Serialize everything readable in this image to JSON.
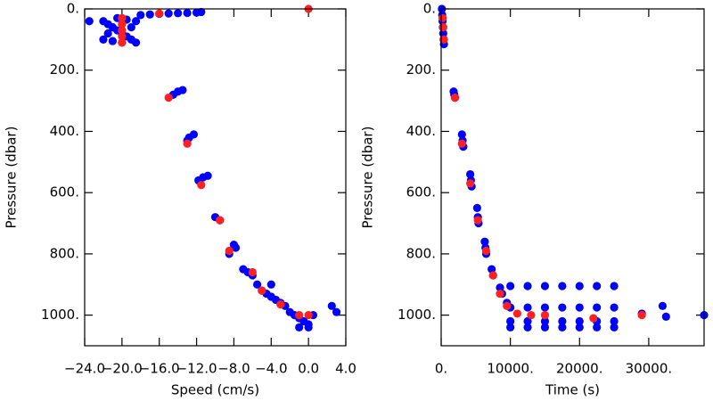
{
  "chart_data": [
    {
      "type": "scatter",
      "xlabel": "Speed (cm/s)",
      "ylabel": "Pressure (dbar)",
      "xlim": [
        -24,
        4
      ],
      "ylim": [
        1100,
        0
      ],
      "xticks": [
        {
          "value": -24,
          "label": "−24.0"
        },
        {
          "value": -20,
          "label": "−20.0"
        },
        {
          "value": -16,
          "label": "−16.0"
        },
        {
          "value": -12,
          "label": "−12.0"
        },
        {
          "value": -8,
          "label": "−8.0"
        },
        {
          "value": -4,
          "label": "−4.0"
        },
        {
          "value": 0,
          "label": "0.0"
        },
        {
          "value": 4,
          "label": "4.0"
        }
      ],
      "yticks": [
        {
          "value": 0,
          "label": "0."
        },
        {
          "value": 200,
          "label": "200."
        },
        {
          "value": 400,
          "label": "400."
        },
        {
          "value": 600,
          "label": "600."
        },
        {
          "value": 800,
          "label": "800."
        },
        {
          "value": 1000,
          "label": "1000."
        }
      ],
      "series": [
        {
          "color": "#0000ff",
          "x": [
            -22,
            -21.5,
            -21,
            -20.5,
            -20,
            -19.5,
            -19,
            -18.5,
            -22,
            -21,
            -20,
            -19,
            -18.5,
            -21.5,
            -20.5,
            -19.5,
            -23.5,
            -18,
            -17,
            -16,
            -15,
            -14,
            -13,
            -12,
            -11.5,
            -14.5,
            -14,
            -13.5,
            -13,
            -12.8,
            -12.3,
            -11.8,
            -11.3,
            -10.8,
            -10,
            -9.5,
            -8.5,
            -8,
            -7.8,
            -7,
            -6.5,
            -6,
            -5.5,
            -5,
            -4.5,
            -4,
            -3.5,
            -3,
            -2.5,
            -2,
            -1.5,
            -1,
            -0.5,
            0,
            0.5,
            -1,
            0,
            -4,
            2.5,
            3
          ],
          "values": [
            40,
            50,
            60,
            70,
            80,
            90,
            100,
            110,
            100,
            105,
            110,
            60,
            40,
            80,
            30,
            35,
            40,
            20,
            18,
            16,
            15,
            14,
            13,
            12,
            10,
            280,
            270,
            265,
            430,
            420,
            410,
            560,
            550,
            545,
            680,
            690,
            800,
            770,
            780,
            850,
            860,
            870,
            900,
            920,
            930,
            940,
            950,
            960,
            970,
            990,
            1000,
            1010,
            1020,
            1030,
            1000,
            1040,
            1040,
            900,
            970,
            990
          ]
        },
        {
          "color": "#ff2020",
          "x": [
            -20,
            -20,
            -20,
            -20,
            -20,
            -16,
            -15,
            -13,
            -11.5,
            -9.5,
            -8.5,
            -6,
            -5,
            -3,
            -1,
            0,
            0
          ],
          "values": [
            30,
            50,
            70,
            90,
            110,
            15,
            290,
            440,
            575,
            690,
            790,
            860,
            920,
            965,
            1000,
            1000,
            0
          ]
        }
      ]
    },
    {
      "type": "scatter",
      "xlabel": "Time (s)",
      "ylabel": "Pressure (dbar)",
      "xlim": [
        0,
        38000
      ],
      "ylim": [
        1100,
        0
      ],
      "xticks": [
        {
          "value": 0,
          "label": "0."
        },
        {
          "value": 10000,
          "label": "10000."
        },
        {
          "value": 20000,
          "label": "20000."
        },
        {
          "value": 30000,
          "label": "30000."
        }
      ],
      "yticks": [
        {
          "value": 0,
          "label": "0."
        },
        {
          "value": 200,
          "label": "200."
        },
        {
          "value": 400,
          "label": "400."
        },
        {
          "value": 600,
          "label": "600."
        },
        {
          "value": 800,
          "label": "800."
        },
        {
          "value": 1000,
          "label": "1000."
        }
      ],
      "series": [
        {
          "color": "#0000ff",
          "x": [
            100,
            150,
            200,
            250,
            300,
            350,
            400,
            1800,
            1900,
            2000,
            3000,
            3100,
            3200,
            4200,
            4300,
            4400,
            5200,
            5300,
            5400,
            6300,
            6400,
            6500,
            7300,
            7500,
            8500,
            8800,
            9500,
            10000,
            12500,
            15000,
            17500,
            20000,
            22500,
            25000,
            10000,
            12500,
            15000,
            17500,
            20000,
            22500,
            25000,
            10000,
            12500,
            15000,
            17500,
            20000,
            22500,
            25000,
            10000,
            12500,
            15000,
            17500,
            20000,
            22500,
            25000,
            29000,
            32000,
            32500,
            38000
          ],
          "values": [
            0,
            20,
            40,
            60,
            80,
            100,
            115,
            270,
            280,
            290,
            410,
            430,
            450,
            540,
            560,
            580,
            650,
            680,
            700,
            760,
            780,
            800,
            850,
            870,
            910,
            930,
            960,
            905,
            905,
            905,
            905,
            905,
            905,
            905,
            975,
            975,
            975,
            975,
            975,
            975,
            975,
            1020,
            1020,
            1020,
            1020,
            1020,
            1020,
            1020,
            1040,
            1040,
            1040,
            1040,
            1040,
            1040,
            1040,
            995,
            970,
            1005,
            1000
          ]
        },
        {
          "color": "#ff2020",
          "x": [
            200,
            300,
            400,
            2000,
            3000,
            4200,
            5300,
            6500,
            7500,
            8500,
            9500,
            11000,
            13000,
            15000,
            22000,
            29000
          ],
          "values": [
            30,
            60,
            100,
            290,
            440,
            570,
            690,
            790,
            870,
            930,
            970,
            995,
            1000,
            1000,
            1010,
            1000
          ]
        }
      ]
    }
  ]
}
